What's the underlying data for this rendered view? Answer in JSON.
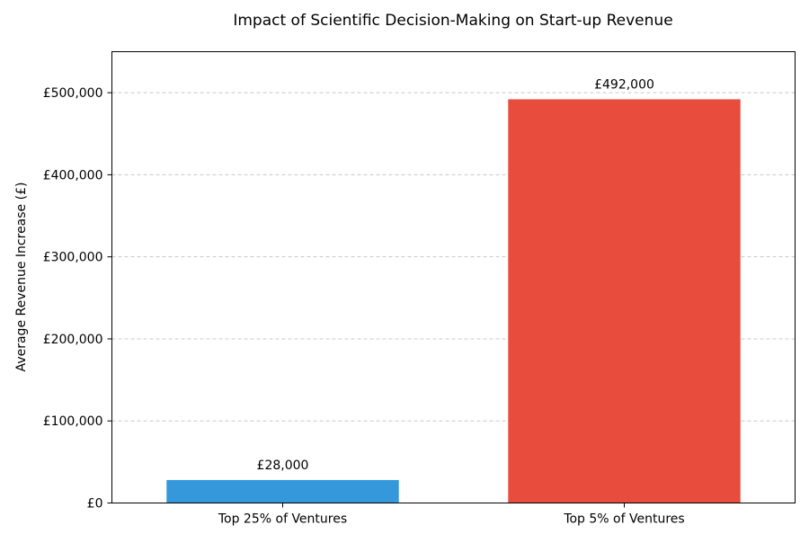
{
  "chart_data": {
    "type": "bar",
    "title": "Impact of Scientific Decision-Making on Start-up Revenue",
    "xlabel": "",
    "ylabel": "Average Revenue Increase (£)",
    "categories": [
      "Top 25% of Ventures",
      "Top 5% of Ventures"
    ],
    "values": [
      28000,
      492000
    ],
    "value_labels": [
      "£28,000",
      "£492,000"
    ],
    "colors": [
      "#3498db",
      "#e74c3c"
    ],
    "ylim": [
      0,
      550000
    ],
    "yticks": [
      0,
      100000,
      200000,
      300000,
      400000,
      500000
    ],
    "ytick_labels": [
      "£0",
      "£100,000",
      "£200,000",
      "£300,000",
      "£400,000",
      "£500,000"
    ],
    "grid": "y-axis dashed",
    "legend": "none"
  }
}
